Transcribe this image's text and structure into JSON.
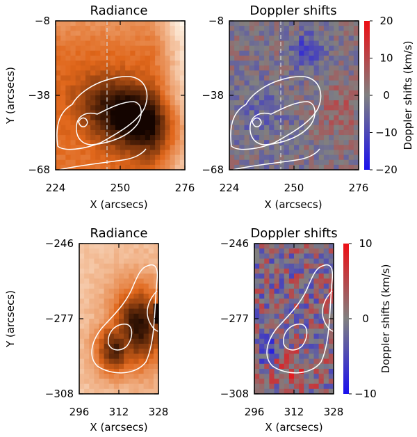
{
  "chart_data": [
    {
      "type": "heatmap",
      "panel": "top-left",
      "title": "Radiance",
      "xlabel": "X (arcsecs)",
      "ylabel": "Y (arcsecs)",
      "xlim": [
        224,
        276
      ],
      "ylim": [
        -68,
        -8
      ],
      "xticks": [
        224,
        250,
        276
      ],
      "yticks": [
        -68,
        -38,
        -8
      ],
      "colormap": "orange-black",
      "slit_x": 246
    },
    {
      "type": "heatmap",
      "panel": "top-right",
      "title": "Doppler shifts",
      "xlabel": "X (arcsecs)",
      "ylabel": "",
      "xlim": [
        224,
        276
      ],
      "ylim": [
        -68,
        -8
      ],
      "xticks": [
        224,
        250,
        276
      ],
      "yticks": [
        -68,
        -38,
        -8
      ],
      "colormap": "blue-gray-red",
      "slit_x": 246,
      "colorbar": {
        "label": "Doppler shifts (km/s)",
        "range": [
          -20,
          20
        ],
        "ticks": [
          -20,
          -10,
          0,
          10,
          20
        ]
      }
    },
    {
      "type": "heatmap",
      "panel": "bottom-left",
      "title": "Radiance",
      "xlabel": "X (arcsecs)",
      "ylabel": "Y (arcsecs)",
      "xlim": [
        296,
        328
      ],
      "ylim": [
        -308,
        -246
      ],
      "xticks": [
        296,
        312,
        328
      ],
      "yticks": [
        -308,
        -277,
        -246
      ],
      "colormap": "orange-black"
    },
    {
      "type": "heatmap",
      "panel": "bottom-right",
      "title": "Doppler shifts",
      "xlabel": "X (arcsecs)",
      "ylabel": "",
      "xlim": [
        296,
        328
      ],
      "ylim": [
        -308,
        -246
      ],
      "xticks": [
        296,
        312,
        328
      ],
      "yticks": [
        -308,
        -277,
        -246
      ],
      "colormap": "blue-gray-red",
      "colorbar": {
        "label": "Doppler shifts (km/s)",
        "range": [
          -10,
          10
        ],
        "ticks": [
          -10,
          0,
          10
        ]
      }
    }
  ],
  "colors": {
    "radiance_bright": "#fff6ea",
    "radiance_mid": "#e0661a",
    "radiance_dark": "#140400",
    "doppler_negative": "#1a10ee",
    "doppler_zero": "#808080",
    "doppler_positive": "#ee0e14",
    "contour": "#ffffff"
  }
}
